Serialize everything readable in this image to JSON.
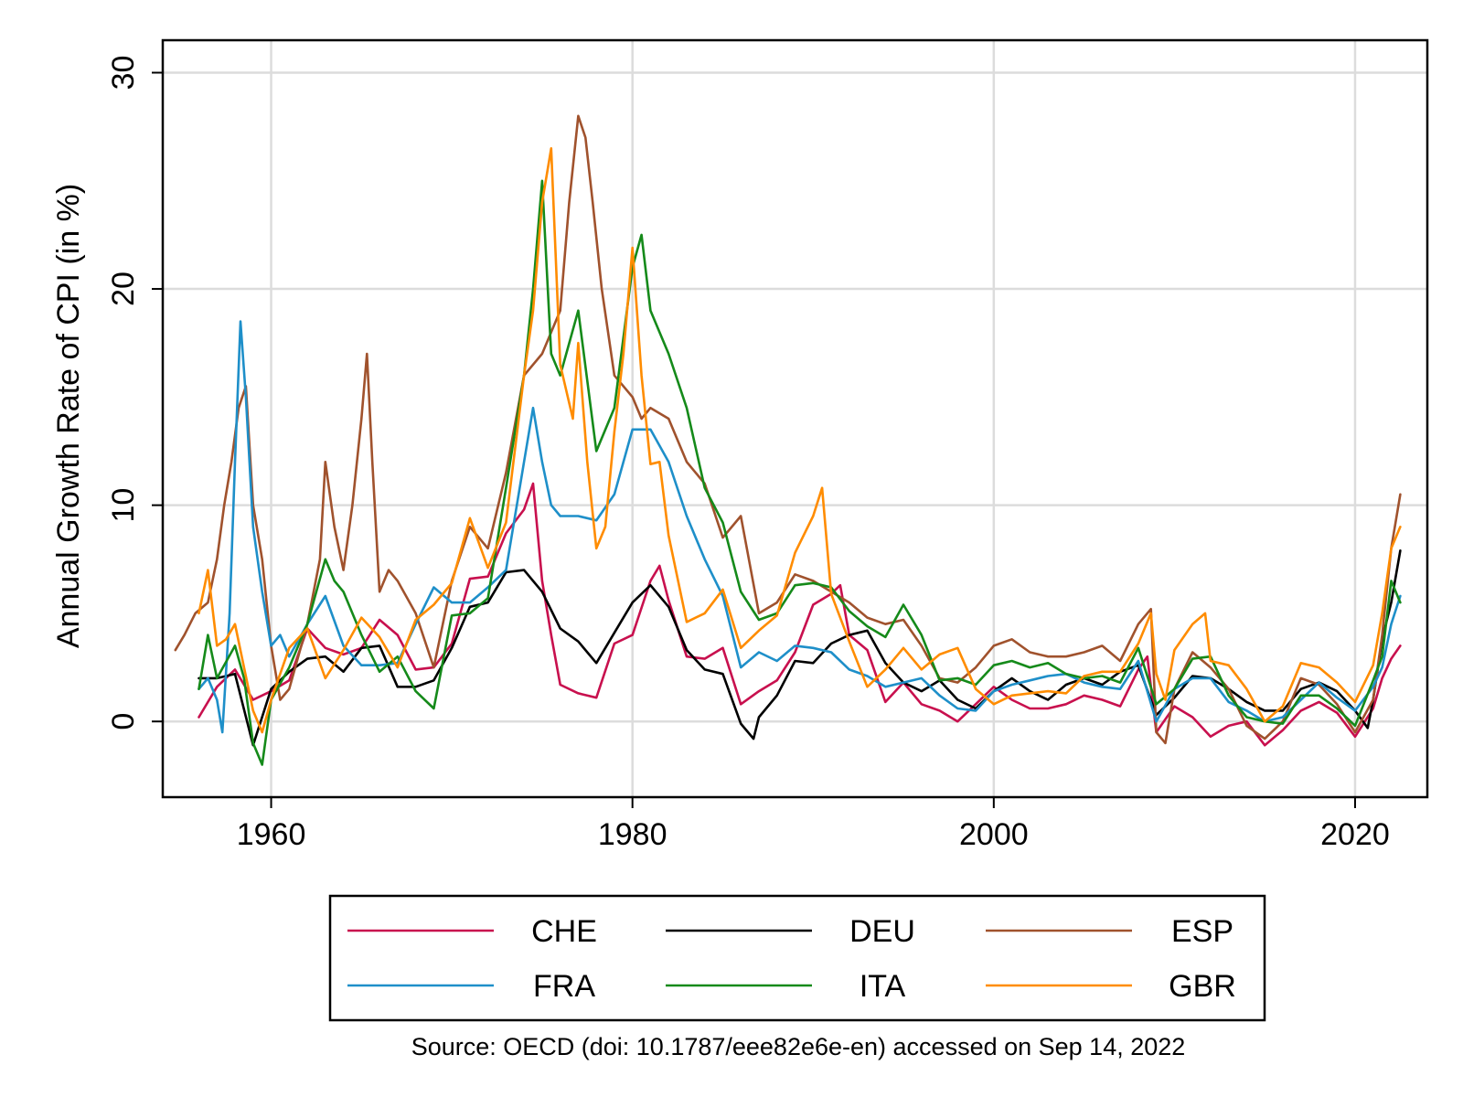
{
  "chart_data": {
    "type": "line",
    "ylabel": "Annual Growth Rate of CPI (in %)",
    "xlabel": "",
    "xlim": [
      1954,
      2024
    ],
    "ylim": [
      -3.5,
      31.5
    ],
    "xticks": [
      1960,
      1980,
      2000,
      2020
    ],
    "yticks": [
      0,
      10,
      20,
      30
    ],
    "xtick_labels": [
      "1960",
      "1980",
      "2000",
      "2020"
    ],
    "ytick_labels": [
      "0",
      "10",
      "20",
      "30"
    ],
    "grid": true,
    "legend_position": "bottom",
    "source_note": "Source: OECD (doi: 10.1787/eee82e6e-en) accessed on Sep 14, 2022",
    "series": [
      {
        "name": "CHE",
        "color": "#c8104e",
        "x": [
          1956.0,
          1957.0,
          1958.0,
          1959.0,
          1960.0,
          1961.0,
          1962.0,
          1963.0,
          1964.0,
          1965.0,
          1966.0,
          1967.0,
          1968.0,
          1969.0,
          1970.0,
          1971.0,
          1972.0,
          1973.0,
          1974.0,
          1974.5,
          1975.0,
          1975.5,
          1976.0,
          1977.0,
          1978.0,
          1979.0,
          1980.0,
          1981.0,
          1981.5,
          1982.0,
          1983.0,
          1984.0,
          1985.0,
          1986.0,
          1987.0,
          1988.0,
          1989.0,
          1990.0,
          1991.0,
          1991.5,
          1992.0,
          1993.0,
          1994.0,
          1995.0,
          1996.0,
          1997.0,
          1998.0,
          1999.0,
          2000.0,
          2001.0,
          2002.0,
          2003.0,
          2004.0,
          2005.0,
          2006.0,
          2007.0,
          2008.0,
          2008.5,
          2009.0,
          2010.0,
          2011.0,
          2012.0,
          2013.0,
          2014.0,
          2015.0,
          2016.0,
          2017.0,
          2018.0,
          2019.0,
          2020.0,
          2021.0,
          2021.5,
          2022.0,
          2022.5
        ],
        "y": [
          0.2,
          1.6,
          2.4,
          1.0,
          1.4,
          1.9,
          4.3,
          3.4,
          3.1,
          3.4,
          4.7,
          4.0,
          2.4,
          2.5,
          3.6,
          6.6,
          6.7,
          8.7,
          9.8,
          11.0,
          6.5,
          4.0,
          1.7,
          1.3,
          1.1,
          3.6,
          4.0,
          6.5,
          7.2,
          5.6,
          3.0,
          2.9,
          3.4,
          0.8,
          1.4,
          1.9,
          3.2,
          5.4,
          5.9,
          6.3,
          4.0,
          3.3,
          0.9,
          1.8,
          0.8,
          0.5,
          0.0,
          0.8,
          1.6,
          1.0,
          0.6,
          0.6,
          0.8,
          1.2,
          1.0,
          0.7,
          2.4,
          3.0,
          -0.5,
          0.7,
          0.2,
          -0.7,
          -0.2,
          0.0,
          -1.1,
          -0.4,
          0.5,
          0.9,
          0.4,
          -0.7,
          0.6,
          2.0,
          2.9,
          3.5
        ]
      },
      {
        "name": "DEU",
        "color": "#000000",
        "x": [
          1956.0,
          1957.0,
          1958.0,
          1959.0,
          1960.0,
          1961.0,
          1962.0,
          1963.0,
          1964.0,
          1965.0,
          1966.0,
          1967.0,
          1968.0,
          1969.0,
          1970.0,
          1971.0,
          1972.0,
          1973.0,
          1974.0,
          1975.0,
          1976.0,
          1977.0,
          1978.0,
          1979.0,
          1980.0,
          1981.0,
          1982.0,
          1983.0,
          1984.0,
          1985.0,
          1986.0,
          1986.7,
          1987.0,
          1988.0,
          1989.0,
          1990.0,
          1991.0,
          1992.0,
          1993.0,
          1994.0,
          1995.0,
          1996.0,
          1997.0,
          1998.0,
          1999.0,
          2000.0,
          2001.0,
          2002.0,
          2003.0,
          2004.0,
          2005.0,
          2006.0,
          2007.0,
          2008.0,
          2009.0,
          2010.0,
          2011.0,
          2012.0,
          2013.0,
          2014.0,
          2015.0,
          2016.0,
          2017.0,
          2018.0,
          2019.0,
          2020.0,
          2020.7,
          2021.0,
          2021.5,
          2022.0,
          2022.5
        ],
        "y": [
          2.0,
          2.0,
          2.2,
          -1.1,
          1.5,
          2.3,
          2.9,
          3.0,
          2.3,
          3.4,
          3.5,
          1.6,
          1.6,
          1.9,
          3.4,
          5.3,
          5.5,
          6.9,
          7.0,
          6.0,
          4.3,
          3.7,
          2.7,
          4.1,
          5.5,
          6.3,
          5.3,
          3.3,
          2.4,
          2.2,
          -0.1,
          -0.8,
          0.2,
          1.2,
          2.8,
          2.7,
          3.6,
          4.0,
          4.2,
          2.7,
          1.8,
          1.4,
          1.9,
          1.0,
          0.6,
          1.4,
          2.0,
          1.4,
          1.0,
          1.7,
          2.0,
          1.7,
          2.3,
          2.6,
          0.3,
          1.1,
          2.1,
          2.0,
          1.5,
          0.9,
          0.5,
          0.5,
          1.5,
          1.8,
          1.4,
          0.5,
          -0.3,
          1.0,
          3.8,
          5.5,
          7.9
        ]
      },
      {
        "name": "ESP",
        "color": "#a0522d",
        "x": [
          1954.7,
          1955.2,
          1955.8,
          1956.5,
          1957.0,
          1957.4,
          1957.8,
          1958.2,
          1958.6,
          1959.0,
          1959.5,
          1960.0,
          1960.5,
          1961.0,
          1962.0,
          1962.7,
          1963.0,
          1963.5,
          1964.0,
          1964.5,
          1965.0,
          1965.3,
          1965.6,
          1966.0,
          1966.5,
          1967.0,
          1968.0,
          1969.0,
          1970.0,
          1971.0,
          1972.0,
          1973.0,
          1974.0,
          1975.0,
          1976.0,
          1976.5,
          1977.0,
          1977.4,
          1977.8,
          1978.3,
          1979.0,
          1980.0,
          1980.5,
          1981.0,
          1982.0,
          1983.0,
          1984.0,
          1985.0,
          1986.0,
          1987.0,
          1988.0,
          1989.0,
          1990.0,
          1991.0,
          1992.0,
          1993.0,
          1994.0,
          1995.0,
          1996.0,
          1997.0,
          1998.0,
          1999.0,
          2000.0,
          2001.0,
          2002.0,
          2003.0,
          2004.0,
          2005.0,
          2006.0,
          2007.0,
          2008.0,
          2008.7,
          2009.0,
          2009.5,
          2010.0,
          2011.0,
          2012.0,
          2013.0,
          2014.0,
          2015.0,
          2016.0,
          2017.0,
          2018.0,
          2019.0,
          2020.0,
          2021.0,
          2021.5,
          2022.0,
          2022.5
        ],
        "y": [
          3.3,
          4.0,
          5.0,
          5.5,
          7.5,
          10.0,
          12.0,
          14.5,
          15.5,
          10.0,
          7.5,
          3.5,
          1.0,
          1.5,
          4.5,
          7.5,
          12.0,
          9.0,
          7.0,
          10.0,
          14.0,
          17.0,
          12.0,
          6.0,
          7.0,
          6.5,
          5.0,
          2.5,
          6.5,
          9.0,
          8.0,
          11.5,
          16.0,
          17.0,
          19.0,
          24.0,
          28.0,
          27.0,
          24.0,
          20.0,
          16.0,
          15.0,
          14.0,
          14.5,
          14.0,
          12.0,
          11.0,
          8.5,
          9.5,
          5.0,
          5.5,
          6.8,
          6.5,
          6.0,
          5.5,
          4.8,
          4.5,
          4.7,
          3.5,
          2.0,
          1.8,
          2.5,
          3.5,
          3.8,
          3.2,
          3.0,
          3.0,
          3.2,
          3.5,
          2.8,
          4.5,
          5.2,
          -0.5,
          -1.0,
          1.5,
          3.2,
          2.5,
          1.5,
          -0.2,
          -0.8,
          0.0,
          2.0,
          1.7,
          0.8,
          -0.5,
          1.0,
          4.0,
          8.0,
          10.5
        ]
      },
      {
        "name": "FRA",
        "color": "#1e8fc9",
        "x": [
          1956.0,
          1956.5,
          1957.0,
          1957.3,
          1957.7,
          1958.0,
          1958.3,
          1958.6,
          1959.0,
          1959.5,
          1960.0,
          1960.5,
          1961.0,
          1962.0,
          1963.0,
          1964.0,
          1965.0,
          1966.0,
          1967.0,
          1968.0,
          1969.0,
          1970.0,
          1971.0,
          1972.0,
          1973.0,
          1974.0,
          1974.5,
          1975.0,
          1975.5,
          1976.0,
          1977.0,
          1978.0,
          1979.0,
          1980.0,
          1981.0,
          1982.0,
          1983.0,
          1984.0,
          1985.0,
          1986.0,
          1987.0,
          1988.0,
          1989.0,
          1990.0,
          1991.0,
          1992.0,
          1993.0,
          1994.0,
          1995.0,
          1996.0,
          1997.0,
          1998.0,
          1999.0,
          2000.0,
          2001.0,
          2002.0,
          2003.0,
          2004.0,
          2005.0,
          2006.0,
          2007.0,
          2008.0,
          2009.0,
          2010.0,
          2011.0,
          2012.0,
          2013.0,
          2014.0,
          2015.0,
          2016.0,
          2017.0,
          2018.0,
          2019.0,
          2020.0,
          2021.0,
          2021.5,
          2022.0,
          2022.5
        ],
        "y": [
          1.5,
          2.0,
          1.0,
          -0.5,
          5.0,
          12.0,
          18.5,
          15.0,
          9.0,
          6.0,
          3.5,
          4.0,
          3.0,
          4.5,
          5.8,
          3.5,
          2.6,
          2.6,
          2.7,
          4.5,
          6.2,
          5.5,
          5.5,
          6.2,
          7.0,
          12.0,
          14.5,
          12.0,
          10.0,
          9.5,
          9.5,
          9.3,
          10.5,
          13.5,
          13.5,
          12.0,
          9.5,
          7.5,
          5.8,
          2.5,
          3.2,
          2.8,
          3.5,
          3.4,
          3.2,
          2.4,
          2.1,
          1.6,
          1.8,
          2.0,
          1.2,
          0.6,
          0.5,
          1.4,
          1.7,
          1.9,
          2.1,
          2.2,
          1.8,
          1.6,
          1.5,
          2.8,
          0.0,
          1.5,
          2.0,
          2.0,
          0.9,
          0.5,
          0.0,
          0.2,
          1.0,
          1.8,
          1.1,
          0.5,
          1.6,
          2.5,
          4.5,
          5.8
        ]
      },
      {
        "name": "ITA",
        "color": "#158a1a",
        "x": [
          1956.0,
          1956.5,
          1957.0,
          1958.0,
          1958.5,
          1959.0,
          1959.5,
          1960.0,
          1961.0,
          1962.0,
          1963.0,
          1963.5,
          1964.0,
          1965.0,
          1966.0,
          1967.0,
          1968.0,
          1969.0,
          1970.0,
          1971.0,
          1972.0,
          1973.0,
          1974.0,
          1974.5,
          1975.0,
          1975.5,
          1976.0,
          1977.0,
          1978.0,
          1979.0,
          1980.0,
          1980.5,
          1981.0,
          1982.0,
          1983.0,
          1984.0,
          1985.0,
          1986.0,
          1987.0,
          1988.0,
          1989.0,
          1990.0,
          1991.0,
          1992.0,
          1993.0,
          1994.0,
          1995.0,
          1996.0,
          1997.0,
          1998.0,
          1999.0,
          2000.0,
          2001.0,
          2002.0,
          2003.0,
          2004.0,
          2005.0,
          2006.0,
          2007.0,
          2008.0,
          2009.0,
          2010.0,
          2011.0,
          2012.0,
          2013.0,
          2014.0,
          2015.0,
          2016.0,
          2017.0,
          2018.0,
          2019.0,
          2020.0,
          2021.0,
          2021.5,
          2022.0,
          2022.5
        ],
        "y": [
          1.5,
          4.0,
          2.0,
          3.5,
          2.0,
          -1.0,
          -2.0,
          1.0,
          2.5,
          4.5,
          7.5,
          6.5,
          6.0,
          4.0,
          2.3,
          3.0,
          1.4,
          0.6,
          4.9,
          5.0,
          5.7,
          10.8,
          16.0,
          20.0,
          25.0,
          17.0,
          16.0,
          19.0,
          12.5,
          14.5,
          21.0,
          22.5,
          19.0,
          17.0,
          14.5,
          10.8,
          9.2,
          6.0,
          4.7,
          5.0,
          6.3,
          6.4,
          6.2,
          5.1,
          4.4,
          3.9,
          5.4,
          4.0,
          1.9,
          2.0,
          1.7,
          2.6,
          2.8,
          2.5,
          2.7,
          2.2,
          2.0,
          2.1,
          1.8,
          3.4,
          0.8,
          1.5,
          2.9,
          3.0,
          1.2,
          0.2,
          0.0,
          -0.1,
          1.2,
          1.2,
          0.6,
          -0.2,
          1.9,
          3.0,
          6.5,
          5.5
        ]
      },
      {
        "name": "GBR",
        "color": "#ff8c00",
        "x": [
          1956.0,
          1956.5,
          1957.0,
          1957.5,
          1958.0,
          1958.5,
          1959.0,
          1959.5,
          1960.0,
          1961.0,
          1962.0,
          1963.0,
          1964.0,
          1965.0,
          1966.0,
          1967.0,
          1968.0,
          1969.0,
          1970.0,
          1971.0,
          1972.0,
          1973.0,
          1974.0,
          1974.5,
          1975.0,
          1975.5,
          1976.0,
          1976.7,
          1977.0,
          1977.5,
          1978.0,
          1978.5,
          1979.0,
          1979.5,
          1980.0,
          1980.5,
          1981.0,
          1981.5,
          1982.0,
          1983.0,
          1984.0,
          1985.0,
          1986.0,
          1987.0,
          1988.0,
          1989.0,
          1990.0,
          1990.5,
          1991.0,
          1992.0,
          1993.0,
          1994.0,
          1995.0,
          1996.0,
          1997.0,
          1998.0,
          1999.0,
          2000.0,
          2001.0,
          2002.0,
          2003.0,
          2004.0,
          2005.0,
          2006.0,
          2007.0,
          2008.0,
          2008.7,
          2009.0,
          2009.5,
          2010.0,
          2011.0,
          2011.7,
          2012.0,
          2013.0,
          2014.0,
          2015.0,
          2016.0,
          2017.0,
          2018.0,
          2019.0,
          2020.0,
          2021.0,
          2021.5,
          2022.0,
          2022.5
        ],
        "y": [
          5.0,
          7.0,
          3.5,
          3.8,
          4.5,
          2.5,
          0.5,
          -0.5,
          1.0,
          3.4,
          4.3,
          2.0,
          3.3,
          4.8,
          3.9,
          2.5,
          4.7,
          5.4,
          6.4,
          9.4,
          7.1,
          9.2,
          16.0,
          19.0,
          24.0,
          26.5,
          16.5,
          14.0,
          17.5,
          12.0,
          8.0,
          9.0,
          13.4,
          17.0,
          21.9,
          16.0,
          11.9,
          12.0,
          8.6,
          4.6,
          5.0,
          6.1,
          3.4,
          4.2,
          4.9,
          7.8,
          9.5,
          10.8,
          5.9,
          3.7,
          1.6,
          2.4,
          3.4,
          2.4,
          3.1,
          3.4,
          1.5,
          0.8,
          1.2,
          1.3,
          1.4,
          1.3,
          2.1,
          2.3,
          2.3,
          3.6,
          5.0,
          2.2,
          1.0,
          3.3,
          4.5,
          5.0,
          2.8,
          2.6,
          1.5,
          0.0,
          0.7,
          2.7,
          2.5,
          1.8,
          0.9,
          2.6,
          5.0,
          8.0,
          9.0
        ]
      }
    ]
  }
}
